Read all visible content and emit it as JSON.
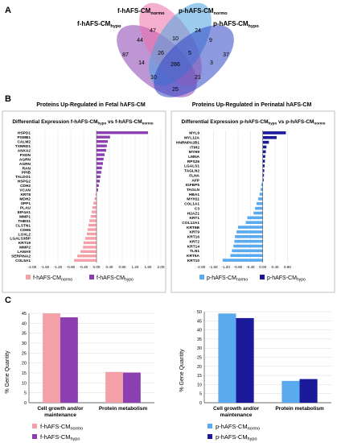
{
  "panels": {
    "a": "A",
    "b": "B",
    "c": "C"
  },
  "venn": {
    "sets": [
      {
        "label": "f-hAFS-CM",
        "sub": "hypo",
        "color": "#8b3fb0"
      },
      {
        "label": "f-hAFS-CM",
        "sub": "normo",
        "color": "#ef6fa8"
      },
      {
        "label": "p-hAFS-CM",
        "sub": "normo",
        "color": "#4aa3df"
      },
      {
        "label": "p-hAFS-CM",
        "sub": "hypo",
        "color": "#2f47c4"
      }
    ],
    "counts": [
      "87",
      "47",
      "24",
      "37",
      "44",
      "10",
      "9",
      "14",
      "26",
      "5",
      "286",
      "3",
      "10",
      "21",
      "25"
    ]
  },
  "colors": {
    "f_normo": "#f4a0a8",
    "f_hypo": "#8b3fb0",
    "p_normo": "#5aaaf0",
    "p_hypo": "#1a1a9a",
    "grid": "#d9d9d9"
  },
  "chart_data": [
    {
      "type": "bar",
      "orientation": "horizontal",
      "title": "Proteins Up-Regulated in Fetal hAFS-CM",
      "subtitle": {
        "parts": [
          "Differential Expression f-hAFS-CM",
          "hypo",
          " vs f-hAFS-CM",
          "normo"
        ]
      },
      "xlim": [
        -2.0,
        2.0
      ],
      "xticks": [
        "-2.00",
        "-1.60",
        "-1.20",
        "-0.80",
        "-0.40",
        "0.00",
        "0.40",
        "0.80",
        "1.20",
        "1.60",
        "2.00"
      ],
      "categories": [
        "HSPD1",
        "PSMB1",
        "CALM2",
        "TXNRD1",
        "ANXA2",
        "PXDN",
        "AGRN",
        "AGRN",
        "RAN",
        "PPIB",
        "TALDO1",
        "HSPG2",
        "CDH2",
        "VCAN",
        "KRT8",
        "MDH2",
        "SPP1",
        "PLAU",
        "EIF4A1",
        "MMP1",
        "THBS1",
        "CLSTN1",
        "CDH6",
        "LOXL2",
        "LGALS3BP",
        "KRT19",
        "MMP2",
        "LAMA5",
        "SERPINA2",
        "COL5A1"
      ],
      "values": [
        1.6,
        0.42,
        0.35,
        0.32,
        0.3,
        0.25,
        0.22,
        0.2,
        0.17,
        0.15,
        0.12,
        0.1,
        0.07,
        0.05,
        -0.03,
        -0.06,
        -0.1,
        -0.13,
        -0.15,
        -0.18,
        -0.22,
        -0.25,
        -0.28,
        -0.3,
        -0.35,
        -0.4,
        -0.42,
        -0.5,
        -0.6,
        -0.7
      ],
      "legend": [
        {
          "label": "f-hAFS-CM",
          "sub": "normo"
        },
        {
          "label": "f-hAFS-CM",
          "sub": "hypo"
        }
      ]
    },
    {
      "type": "bar",
      "orientation": "horizontal",
      "title": "Proteins Up-Regulated in Perinatal hAFS-CM",
      "subtitle": {
        "parts": [
          "Differential Expression p-hAFS-CM",
          "hypo",
          " vs p-hAFS-CM",
          "normo"
        ]
      },
      "xlim": [
        -2.0,
        1.0
      ],
      "xticks": [
        "-2.00",
        "-1.60",
        "-1.20",
        "-0.80",
        "-0.40",
        "0.00",
        "0.40",
        "0.80"
      ],
      "categories": [
        "MYL9",
        "MYL12A",
        "HNRNPA2B1",
        "ITIH2",
        "MYH9",
        "LMNA",
        "RPS26",
        "LGALS1",
        "TAGLN2",
        "FLNA",
        "AFP",
        "IGFBP5",
        "TAGLN",
        "HBA1",
        "MYH11",
        "COL1A1",
        "C3",
        "H2AZ1",
        "KRT1",
        "COL12A1",
        "KRT6B",
        "KRT9",
        "KRT16",
        "KRT2",
        "KRT14",
        "TLN1",
        "KRT6A",
        "KRT10"
      ],
      "values": [
        0.75,
        0.45,
        0.2,
        0.12,
        0.1,
        0.08,
        0.07,
        0.06,
        0.05,
        0.04,
        0.03,
        -0.05,
        -0.07,
        -0.1,
        -0.15,
        -0.2,
        -0.25,
        -0.3,
        -0.5,
        -0.55,
        -0.8,
        -0.85,
        -0.9,
        -0.92,
        -0.95,
        -1.0,
        -1.05,
        -1.3
      ],
      "legend": [
        {
          "label": "p-hAFS-CM",
          "sub": "normo"
        },
        {
          "label": "p-hAFS-CM",
          "sub": "hypo"
        }
      ]
    },
    {
      "type": "bar",
      "ylabel": "% Gene Quantity",
      "ylim": [
        0,
        45
      ],
      "yticks": [
        "0",
        "5",
        "10",
        "15",
        "20",
        "25",
        "30",
        "35",
        "40",
        "45"
      ],
      "categories": [
        [
          "Cell growth and/or",
          "maintenance"
        ],
        [
          "Protein metabolism"
        ]
      ],
      "series": [
        {
          "name": "f-hAFS-CM",
          "sub": "normo",
          "values": [
            45,
            15.5
          ]
        },
        {
          "name": "f-hAFS-CM",
          "sub": "hypo",
          "values": [
            43,
            15.2
          ]
        }
      ]
    },
    {
      "type": "bar",
      "ylabel": "% Gene Quantity",
      "ylim": [
        0,
        50
      ],
      "yticks": [
        "0",
        "5",
        "10",
        "15",
        "20",
        "25",
        "30",
        "35",
        "40",
        "45",
        "50"
      ],
      "categories": [
        [
          "Cell growth and/or",
          "maintenance"
        ],
        [
          "Protein metabolism"
        ]
      ],
      "series": [
        {
          "name": "p-hAFS-CM",
          "sub": "normo",
          "values": [
            49,
            12
          ]
        },
        {
          "name": "p-hAFS-CM",
          "sub": "hypo",
          "values": [
            46.5,
            13
          ]
        }
      ]
    }
  ]
}
